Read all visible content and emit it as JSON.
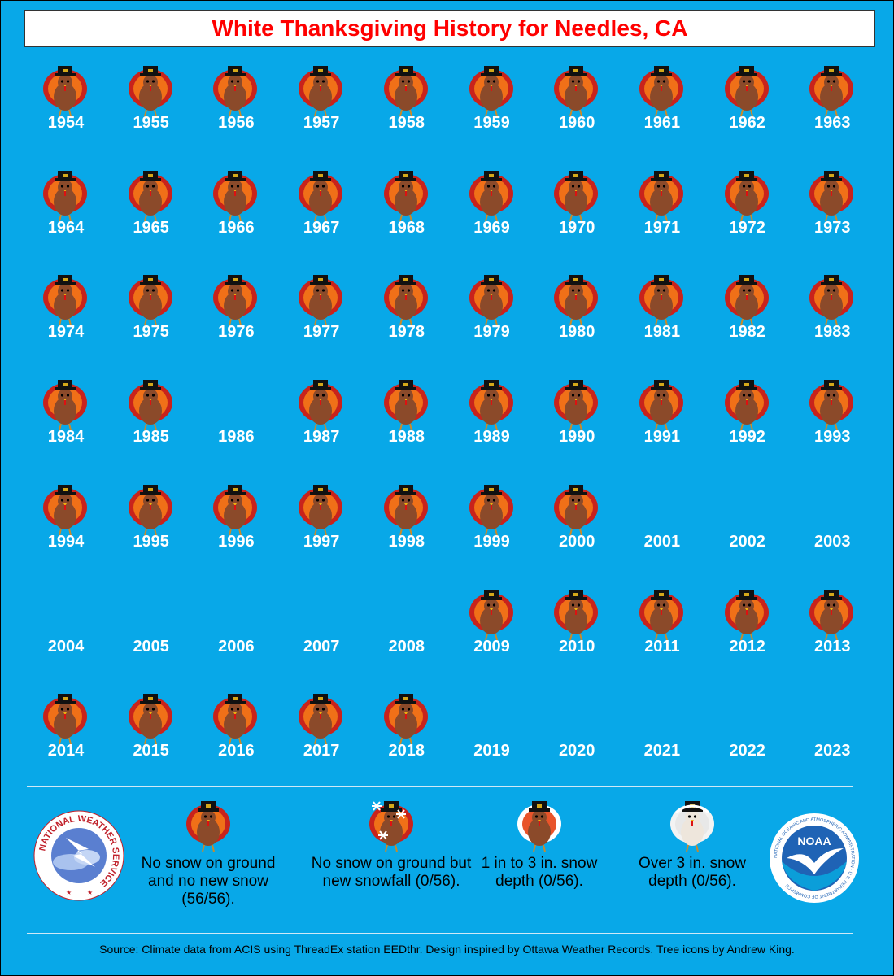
{
  "title": "White Thanksgiving History for Needles, CA",
  "years": [
    {
      "year": "1954",
      "icon": "turkey-icon"
    },
    {
      "year": "1955",
      "icon": "turkey-icon"
    },
    {
      "year": "1956",
      "icon": "turkey-icon"
    },
    {
      "year": "1957",
      "icon": "turkey-icon"
    },
    {
      "year": "1958",
      "icon": "turkey-icon"
    },
    {
      "year": "1959",
      "icon": "turkey-icon"
    },
    {
      "year": "1960",
      "icon": "turkey-icon"
    },
    {
      "year": "1961",
      "icon": "turkey-icon"
    },
    {
      "year": "1962",
      "icon": "turkey-icon"
    },
    {
      "year": "1963",
      "icon": "turkey-icon"
    },
    {
      "year": "1964",
      "icon": "turkey-icon"
    },
    {
      "year": "1965",
      "icon": "turkey-icon"
    },
    {
      "year": "1966",
      "icon": "turkey-icon"
    },
    {
      "year": "1967",
      "icon": "turkey-icon"
    },
    {
      "year": "1968",
      "icon": "turkey-icon"
    },
    {
      "year": "1969",
      "icon": "turkey-icon"
    },
    {
      "year": "1970",
      "icon": "turkey-icon"
    },
    {
      "year": "1971",
      "icon": "turkey-icon"
    },
    {
      "year": "1972",
      "icon": "turkey-icon"
    },
    {
      "year": "1973",
      "icon": "turkey-icon"
    },
    {
      "year": "1974",
      "icon": "turkey-icon"
    },
    {
      "year": "1975",
      "icon": "turkey-icon"
    },
    {
      "year": "1976",
      "icon": "turkey-icon"
    },
    {
      "year": "1977",
      "icon": "turkey-icon"
    },
    {
      "year": "1978",
      "icon": "turkey-icon"
    },
    {
      "year": "1979",
      "icon": "turkey-icon"
    },
    {
      "year": "1980",
      "icon": "turkey-icon"
    },
    {
      "year": "1981",
      "icon": "turkey-icon"
    },
    {
      "year": "1982",
      "icon": "turkey-icon"
    },
    {
      "year": "1983",
      "icon": "turkey-icon"
    },
    {
      "year": "1984",
      "icon": "turkey-icon"
    },
    {
      "year": "1985",
      "icon": "turkey-icon"
    },
    {
      "year": "1986",
      "icon": null
    },
    {
      "year": "1987",
      "icon": "turkey-icon"
    },
    {
      "year": "1988",
      "icon": "turkey-icon"
    },
    {
      "year": "1989",
      "icon": "turkey-icon"
    },
    {
      "year": "1990",
      "icon": "turkey-icon"
    },
    {
      "year": "1991",
      "icon": "turkey-icon"
    },
    {
      "year": "1992",
      "icon": "turkey-icon"
    },
    {
      "year": "1993",
      "icon": "turkey-icon"
    },
    {
      "year": "1994",
      "icon": "turkey-icon"
    },
    {
      "year": "1995",
      "icon": "turkey-icon"
    },
    {
      "year": "1996",
      "icon": "turkey-icon"
    },
    {
      "year": "1997",
      "icon": "turkey-icon"
    },
    {
      "year": "1998",
      "icon": "turkey-icon"
    },
    {
      "year": "1999",
      "icon": "turkey-icon"
    },
    {
      "year": "2000",
      "icon": "turkey-icon"
    },
    {
      "year": "2001",
      "icon": null
    },
    {
      "year": "2002",
      "icon": null
    },
    {
      "year": "2003",
      "icon": null
    },
    {
      "year": "2004",
      "icon": null
    },
    {
      "year": "2005",
      "icon": null
    },
    {
      "year": "2006",
      "icon": null
    },
    {
      "year": "2007",
      "icon": null
    },
    {
      "year": "2008",
      "icon": null
    },
    {
      "year": "2009",
      "icon": "turkey-icon"
    },
    {
      "year": "2010",
      "icon": "turkey-icon"
    },
    {
      "year": "2011",
      "icon": "turkey-icon"
    },
    {
      "year": "2012",
      "icon": "turkey-icon"
    },
    {
      "year": "2013",
      "icon": "turkey-icon"
    },
    {
      "year": "2014",
      "icon": "turkey-icon"
    },
    {
      "year": "2015",
      "icon": "turkey-icon"
    },
    {
      "year": "2016",
      "icon": "turkey-icon"
    },
    {
      "year": "2017",
      "icon": "turkey-icon"
    },
    {
      "year": "2018",
      "icon": "turkey-icon"
    },
    {
      "year": "2019",
      "icon": null
    },
    {
      "year": "2020",
      "icon": null
    },
    {
      "year": "2021",
      "icon": null
    },
    {
      "year": "2022",
      "icon": null
    },
    {
      "year": "2023",
      "icon": null
    }
  ],
  "legend": [
    {
      "icon": "turkey-icon",
      "text": "No snow on ground and no new snow (56/56)."
    },
    {
      "icon": "snowflake-turkey-icon",
      "text": "No snow on ground but new snowfall (0/56)."
    },
    {
      "icon": "snowy-turkey-icon",
      "text": "1 in to 3 in. snow depth (0/56)."
    },
    {
      "icon": "snow-covered-turkey-icon",
      "text": "Over 3 in. snow depth (0/56)."
    }
  ],
  "logos": {
    "left": "national-weather-service-logo",
    "left_text": "NATIONAL WEATHER SERVICE",
    "right": "noaa-logo",
    "right_text": "NOAA",
    "right_ring_text": "NATIONAL OCEANIC AND ATMOSPHERIC ADMINISTRATION · U.S. DEPARTMENT OF COMMERCE"
  },
  "source": "Source: Climate data from ACIS using ThreadEx station EEDthr. Design inspired by Ottawa Weather Records. Tree icons by Andrew King.",
  "colors": {
    "background": "#08a8e8",
    "title": "#ff0000",
    "year_text": "#ffffff"
  }
}
